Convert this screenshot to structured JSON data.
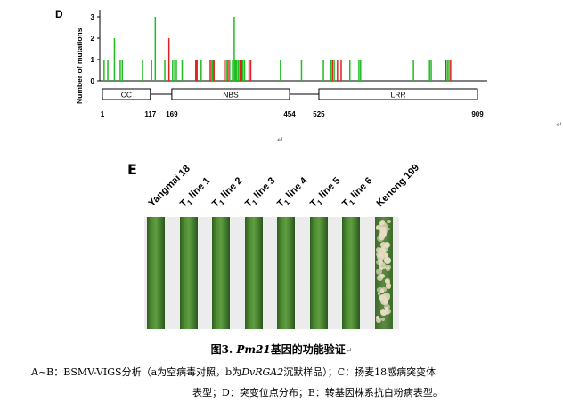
{
  "panel_d": {
    "label": "D",
    "chart_data": {
      "type": "bar",
      "ylabel": "Number of mutations",
      "yticks": [
        "0",
        "1",
        "2",
        "3"
      ],
      "ylim": [
        0,
        3
      ],
      "xlim": [
        1,
        909
      ],
      "colors": {
        "green": "#22bb22",
        "red": "#e02020"
      },
      "mutations": [
        {
          "pos": 5,
          "count": 1,
          "color": "green"
        },
        {
          "pos": 14,
          "count": 1,
          "color": "green"
        },
        {
          "pos": 30,
          "count": 2,
          "color": "green"
        },
        {
          "pos": 44,
          "count": 1,
          "color": "green"
        },
        {
          "pos": 49,
          "count": 1,
          "color": "green"
        },
        {
          "pos": 98,
          "count": 1,
          "color": "green"
        },
        {
          "pos": 120,
          "count": 1,
          "color": "green"
        },
        {
          "pos": 129,
          "count": 3,
          "color": "green"
        },
        {
          "pos": 152,
          "count": 1,
          "color": "green"
        },
        {
          "pos": 162,
          "count": 2,
          "color": "red"
        },
        {
          "pos": 171,
          "count": 1,
          "color": "green"
        },
        {
          "pos": 176,
          "count": 1,
          "color": "green"
        },
        {
          "pos": 180,
          "count": 1,
          "color": "green"
        },
        {
          "pos": 194,
          "count": 1,
          "color": "green"
        },
        {
          "pos": 227,
          "count": 1,
          "color": "red"
        },
        {
          "pos": 230,
          "count": 1,
          "color": "red"
        },
        {
          "pos": 240,
          "count": 1,
          "color": "green"
        },
        {
          "pos": 262,
          "count": 1,
          "color": "red"
        },
        {
          "pos": 266,
          "count": 1,
          "color": "green"
        },
        {
          "pos": 268,
          "count": 1,
          "color": "green"
        },
        {
          "pos": 271,
          "count": 1,
          "color": "red"
        },
        {
          "pos": 296,
          "count": 1,
          "color": "red"
        },
        {
          "pos": 301,
          "count": 1,
          "color": "green"
        },
        {
          "pos": 305,
          "count": 1,
          "color": "red"
        },
        {
          "pos": 309,
          "count": 1,
          "color": "green"
        },
        {
          "pos": 316,
          "count": 1,
          "color": "green"
        },
        {
          "pos": 320,
          "count": 3,
          "color": "green"
        },
        {
          "pos": 323,
          "count": 1,
          "color": "green"
        },
        {
          "pos": 326,
          "count": 1,
          "color": "green"
        },
        {
          "pos": 330,
          "count": 1,
          "color": "green"
        },
        {
          "pos": 334,
          "count": 1,
          "color": "red"
        },
        {
          "pos": 338,
          "count": 1,
          "color": "red"
        },
        {
          "pos": 341,
          "count": 1,
          "color": "green"
        },
        {
          "pos": 345,
          "count": 1,
          "color": "green"
        },
        {
          "pos": 356,
          "count": 1,
          "color": "red"
        },
        {
          "pos": 360,
          "count": 1,
          "color": "red"
        },
        {
          "pos": 432,
          "count": 1,
          "color": "green"
        },
        {
          "pos": 483,
          "count": 1,
          "color": "green"
        },
        {
          "pos": 536,
          "count": 1,
          "color": "green"
        },
        {
          "pos": 554,
          "count": 1,
          "color": "green"
        },
        {
          "pos": 558,
          "count": 1,
          "color": "red"
        },
        {
          "pos": 562,
          "count": 1,
          "color": "green"
        },
        {
          "pos": 570,
          "count": 1,
          "color": "red"
        },
        {
          "pos": 579,
          "count": 1,
          "color": "red"
        },
        {
          "pos": 600,
          "count": 1,
          "color": "green"
        },
        {
          "pos": 622,
          "count": 1,
          "color": "green"
        },
        {
          "pos": 626,
          "count": 1,
          "color": "green"
        },
        {
          "pos": 754,
          "count": 1,
          "color": "green"
        },
        {
          "pos": 793,
          "count": 1,
          "color": "green"
        },
        {
          "pos": 797,
          "count": 1,
          "color": "green"
        },
        {
          "pos": 832,
          "count": 1,
          "color": "red"
        },
        {
          "pos": 836,
          "count": 1,
          "color": "green"
        },
        {
          "pos": 840,
          "count": 1,
          "color": "green"
        },
        {
          "pos": 844,
          "count": 1,
          "color": "red"
        }
      ],
      "domains": [
        {
          "name": "CC",
          "start": 1,
          "end": 117
        },
        {
          "name": "NBS",
          "start": 169,
          "end": 454
        },
        {
          "name": "LRR",
          "start": 525,
          "end": 909
        }
      ],
      "position_labels": [
        "1",
        "117",
        "169",
        "454",
        "525",
        "909"
      ]
    }
  },
  "panel_e": {
    "label": "E",
    "leaves": [
      {
        "name": "Yangmai 18",
        "prefix": "Yangmai 18",
        "sub": "",
        "suffix": ""
      },
      {
        "name": "T1 line 1",
        "prefix": "T",
        "sub": "1",
        "suffix": " line 1"
      },
      {
        "name": "T1 line 2",
        "prefix": "T",
        "sub": "1",
        "suffix": " line 2"
      },
      {
        "name": "T1 line 3",
        "prefix": "T",
        "sub": "1",
        "suffix": " line 3"
      },
      {
        "name": "T1 line 4",
        "prefix": "T",
        "sub": "1",
        "suffix": " line 4"
      },
      {
        "name": "T1 line 5",
        "prefix": "T",
        "sub": "1",
        "suffix": " line 5"
      },
      {
        "name": "T1 line 6",
        "prefix": "T",
        "sub": "1",
        "suffix": " line 6"
      },
      {
        "name": "Kenong 199",
        "prefix": "Kenong 199",
        "sub": "",
        "suffix": ""
      }
    ]
  },
  "return_mark": "↵",
  "caption": {
    "title_prefix": "图3.  ",
    "title_gene": "Pm21",
    "title_suffix": "基因的功能验证",
    "line1_a": "A~B：BSMV-VIGS分析（a为空病毒对照，b为",
    "line1_gene": "DvRGA2",
    "line1_b": "沉默样品）；C：扬麦18感病突变体",
    "line2": "表型；D：突变位点分布；E：转基因株系抗白粉病表型。"
  }
}
